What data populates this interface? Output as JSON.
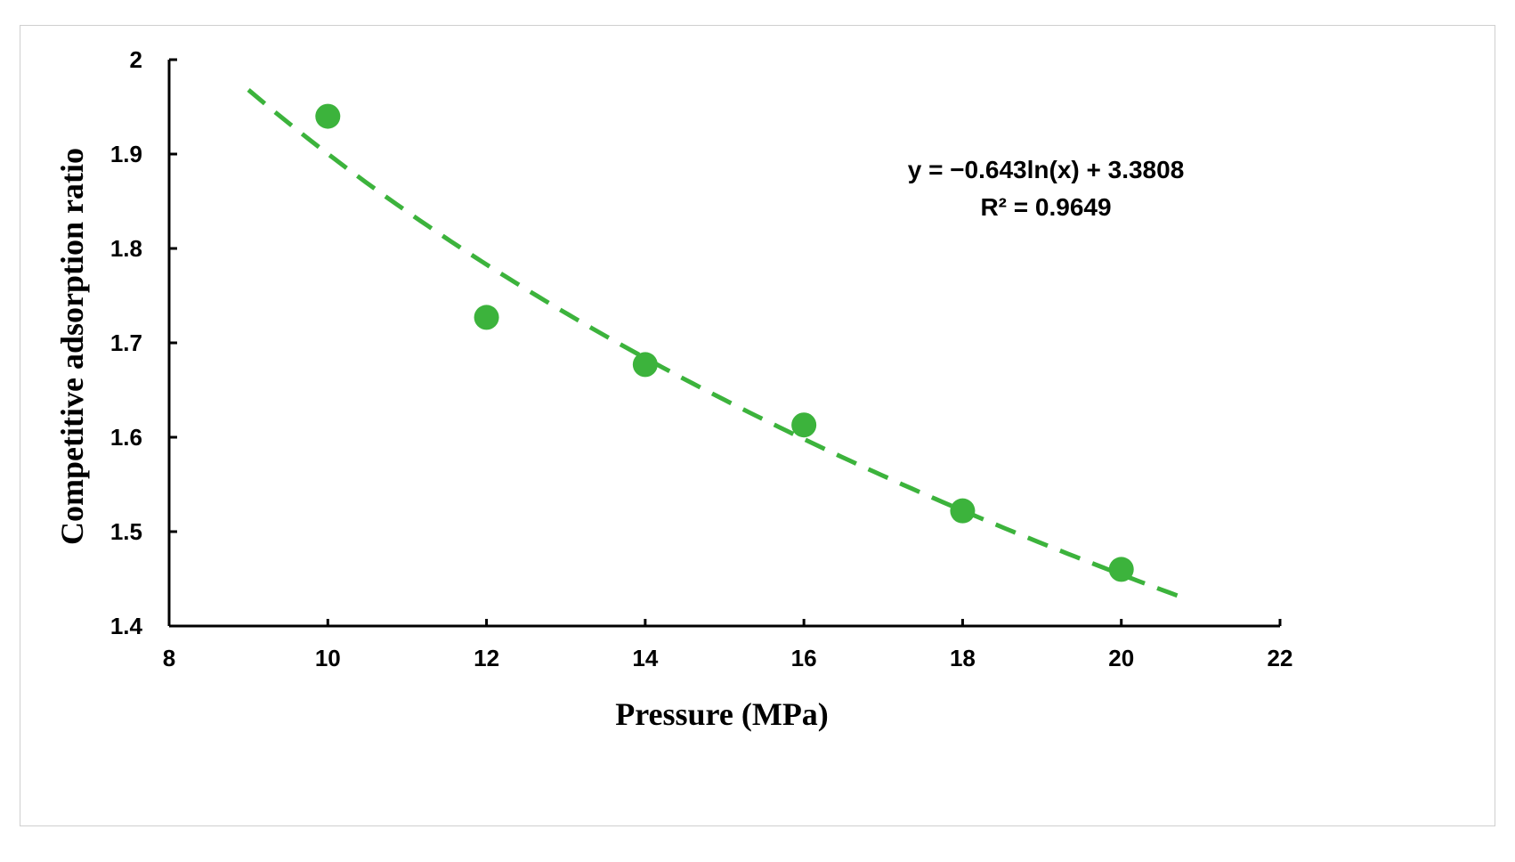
{
  "chart_data": {
    "type": "scatter",
    "title": "",
    "xlabel": "Pressure (MPa)",
    "ylabel": "Competitive adsorption ratio",
    "xlim": [
      8,
      22
    ],
    "ylim": [
      1.4,
      2.0
    ],
    "x_ticks": [
      "8",
      "10",
      "12",
      "14",
      "16",
      "18",
      "20",
      "22"
    ],
    "y_ticks": [
      "1.4",
      "1.5",
      "1.6",
      "1.7",
      "1.8",
      "1.9",
      "2"
    ],
    "grid": false,
    "legend": "none",
    "series": [
      {
        "name": "Competitive adsorption ratio",
        "x": [
          10,
          12,
          14,
          16,
          18,
          20
        ],
        "y": [
          1.94,
          1.727,
          1.677,
          1.613,
          1.522,
          1.46
        ],
        "color": "#3cb33c"
      }
    ],
    "trendline": {
      "type": "logarithmic",
      "a": -0.643,
      "b": 3.3808,
      "x_range": [
        9,
        20.8
      ],
      "color": "#3cb33c",
      "style": "dashed"
    },
    "annotations": {
      "equation": "y = −0.643ln(x) + 3.3808",
      "r_squared": "R² = 0.9649"
    }
  }
}
